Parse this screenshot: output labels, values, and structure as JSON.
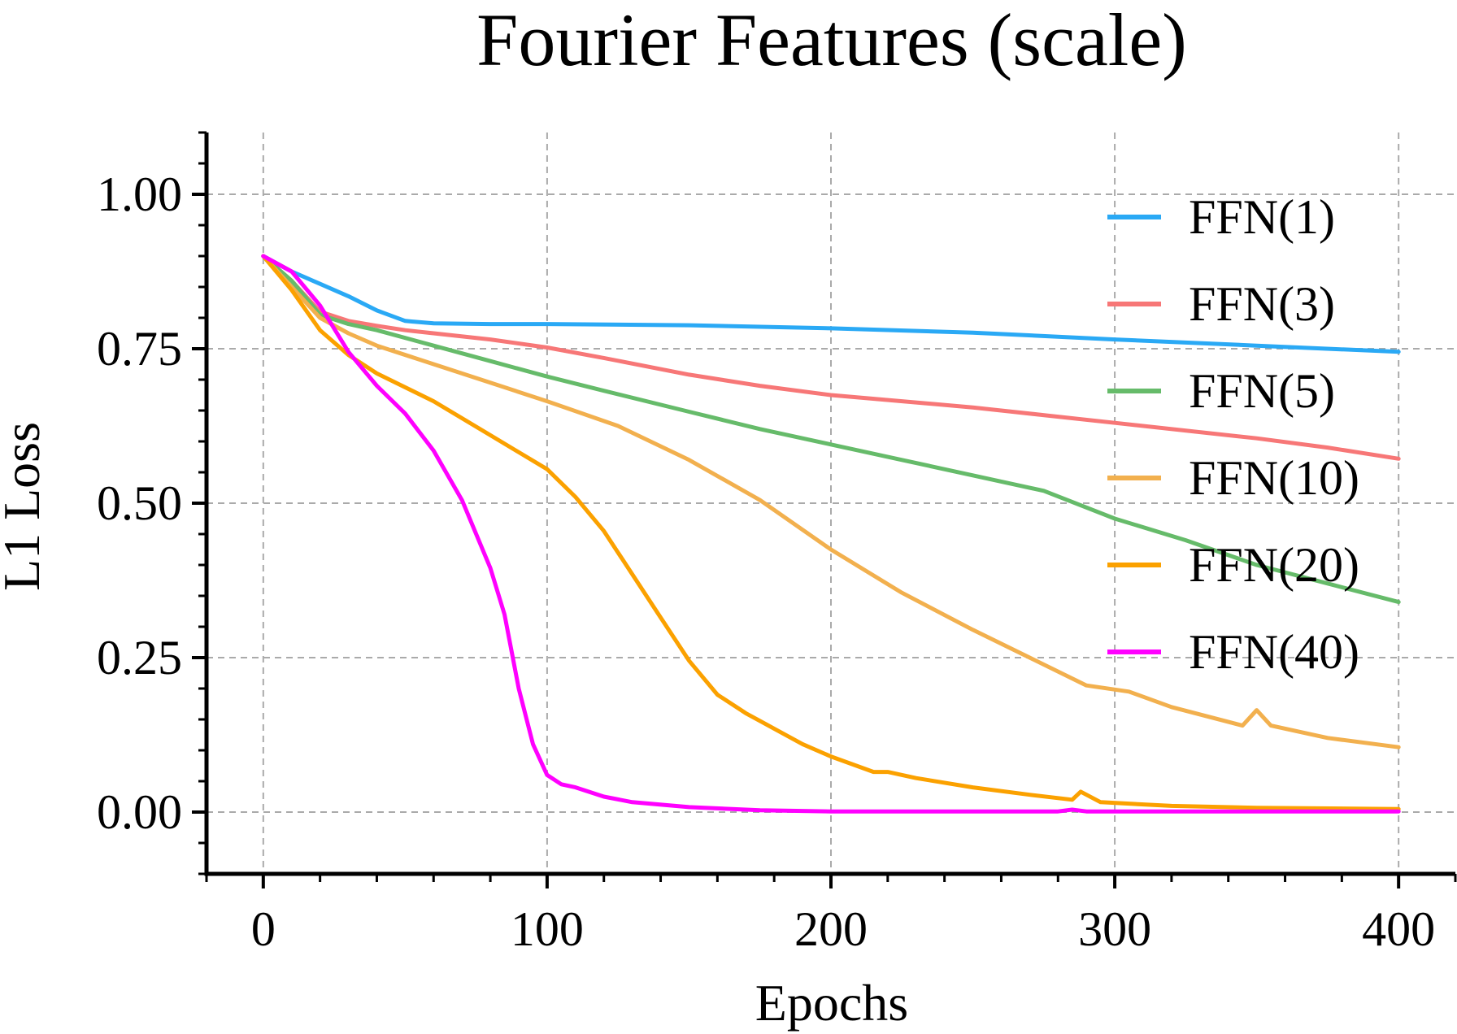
{
  "chart_data": {
    "type": "line",
    "title": "Fourier Features (scale)",
    "xlabel": "Epochs",
    "ylabel": "L1 Loss",
    "xlim": [
      -20,
      420
    ],
    "ylim": [
      -0.1,
      1.1
    ],
    "xticks": [
      0,
      100,
      200,
      300,
      400
    ],
    "xtick_labels": [
      "0",
      "100",
      "200",
      "300",
      "400"
    ],
    "yticks": [
      0.0,
      0.25,
      0.5,
      0.75,
      1.0
    ],
    "ytick_labels": [
      "0.00",
      "0.25",
      "0.50",
      "0.75",
      "1.00"
    ],
    "grid": true,
    "legend_position": "right",
    "series": [
      {
        "name": "FFN(1)",
        "color": "#2aa9f5",
        "points": [
          [
            0,
            0.9
          ],
          [
            10,
            0.875
          ],
          [
            20,
            0.855
          ],
          [
            30,
            0.835
          ],
          [
            40,
            0.812
          ],
          [
            50,
            0.795
          ],
          [
            60,
            0.791
          ],
          [
            80,
            0.79
          ],
          [
            100,
            0.79
          ],
          [
            150,
            0.788
          ],
          [
            200,
            0.783
          ],
          [
            250,
            0.776
          ],
          [
            300,
            0.765
          ],
          [
            350,
            0.755
          ],
          [
            400,
            0.745
          ]
        ]
      },
      {
        "name": "FFN(3)",
        "color": "#f77777",
        "points": [
          [
            0,
            0.9
          ],
          [
            10,
            0.86
          ],
          [
            20,
            0.81
          ],
          [
            30,
            0.795
          ],
          [
            40,
            0.787
          ],
          [
            50,
            0.78
          ],
          [
            60,
            0.775
          ],
          [
            80,
            0.765
          ],
          [
            100,
            0.752
          ],
          [
            120,
            0.735
          ],
          [
            150,
            0.708
          ],
          [
            175,
            0.69
          ],
          [
            200,
            0.675
          ],
          [
            250,
            0.655
          ],
          [
            300,
            0.63
          ],
          [
            350,
            0.605
          ],
          [
            375,
            0.59
          ],
          [
            400,
            0.572
          ]
        ]
      },
      {
        "name": "FFN(5)",
        "color": "#66bb6a",
        "points": [
          [
            0,
            0.9
          ],
          [
            10,
            0.86
          ],
          [
            20,
            0.805
          ],
          [
            30,
            0.79
          ],
          [
            40,
            0.78
          ],
          [
            60,
            0.755
          ],
          [
            80,
            0.73
          ],
          [
            100,
            0.705
          ],
          [
            120,
            0.682
          ],
          [
            150,
            0.648
          ],
          [
            175,
            0.62
          ],
          [
            200,
            0.595
          ],
          [
            225,
            0.57
          ],
          [
            250,
            0.545
          ],
          [
            275,
            0.52
          ],
          [
            300,
            0.475
          ],
          [
            325,
            0.44
          ],
          [
            350,
            0.4
          ],
          [
            375,
            0.37
          ],
          [
            400,
            0.34
          ]
        ]
      },
      {
        "name": "FFN(10)",
        "color": "#f2b04e",
        "points": [
          [
            0,
            0.9
          ],
          [
            10,
            0.85
          ],
          [
            20,
            0.8
          ],
          [
            30,
            0.775
          ],
          [
            40,
            0.755
          ],
          [
            60,
            0.725
          ],
          [
            80,
            0.695
          ],
          [
            100,
            0.665
          ],
          [
            125,
            0.625
          ],
          [
            150,
            0.57
          ],
          [
            175,
            0.505
          ],
          [
            200,
            0.425
          ],
          [
            225,
            0.355
          ],
          [
            250,
            0.295
          ],
          [
            270,
            0.25
          ],
          [
            290,
            0.205
          ],
          [
            305,
            0.195
          ],
          [
            320,
            0.17
          ],
          [
            345,
            0.14
          ],
          [
            350,
            0.165
          ],
          [
            355,
            0.14
          ],
          [
            375,
            0.12
          ],
          [
            400,
            0.105
          ]
        ]
      },
      {
        "name": "FFN(20)",
        "color": "#fba100",
        "points": [
          [
            0,
            0.9
          ],
          [
            10,
            0.845
          ],
          [
            20,
            0.78
          ],
          [
            30,
            0.74
          ],
          [
            40,
            0.71
          ],
          [
            60,
            0.665
          ],
          [
            80,
            0.61
          ],
          [
            100,
            0.555
          ],
          [
            110,
            0.51
          ],
          [
            120,
            0.455
          ],
          [
            130,
            0.385
          ],
          [
            140,
            0.315
          ],
          [
            150,
            0.245
          ],
          [
            160,
            0.19
          ],
          [
            170,
            0.16
          ],
          [
            180,
            0.135
          ],
          [
            190,
            0.11
          ],
          [
            200,
            0.09
          ],
          [
            215,
            0.065
          ],
          [
            220,
            0.065
          ],
          [
            230,
            0.055
          ],
          [
            250,
            0.04
          ],
          [
            270,
            0.028
          ],
          [
            285,
            0.02
          ],
          [
            288,
            0.033
          ],
          [
            295,
            0.016
          ],
          [
            320,
            0.01
          ],
          [
            350,
            0.007
          ],
          [
            400,
            0.005
          ]
        ]
      },
      {
        "name": "FFN(40)",
        "color": "#ff00ff",
        "points": [
          [
            0,
            0.9
          ],
          [
            10,
            0.875
          ],
          [
            20,
            0.82
          ],
          [
            30,
            0.745
          ],
          [
            40,
            0.69
          ],
          [
            50,
            0.645
          ],
          [
            60,
            0.585
          ],
          [
            70,
            0.505
          ],
          [
            80,
            0.395
          ],
          [
            85,
            0.32
          ],
          [
            90,
            0.2
          ],
          [
            95,
            0.11
          ],
          [
            100,
            0.06
          ],
          [
            105,
            0.045
          ],
          [
            110,
            0.04
          ],
          [
            120,
            0.025
          ],
          [
            130,
            0.016
          ],
          [
            150,
            0.008
          ],
          [
            175,
            0.003
          ],
          [
            200,
            0.001
          ],
          [
            280,
            0.001
          ],
          [
            285,
            0.004
          ],
          [
            290,
            0.001
          ],
          [
            400,
            0.001
          ]
        ]
      }
    ]
  }
}
